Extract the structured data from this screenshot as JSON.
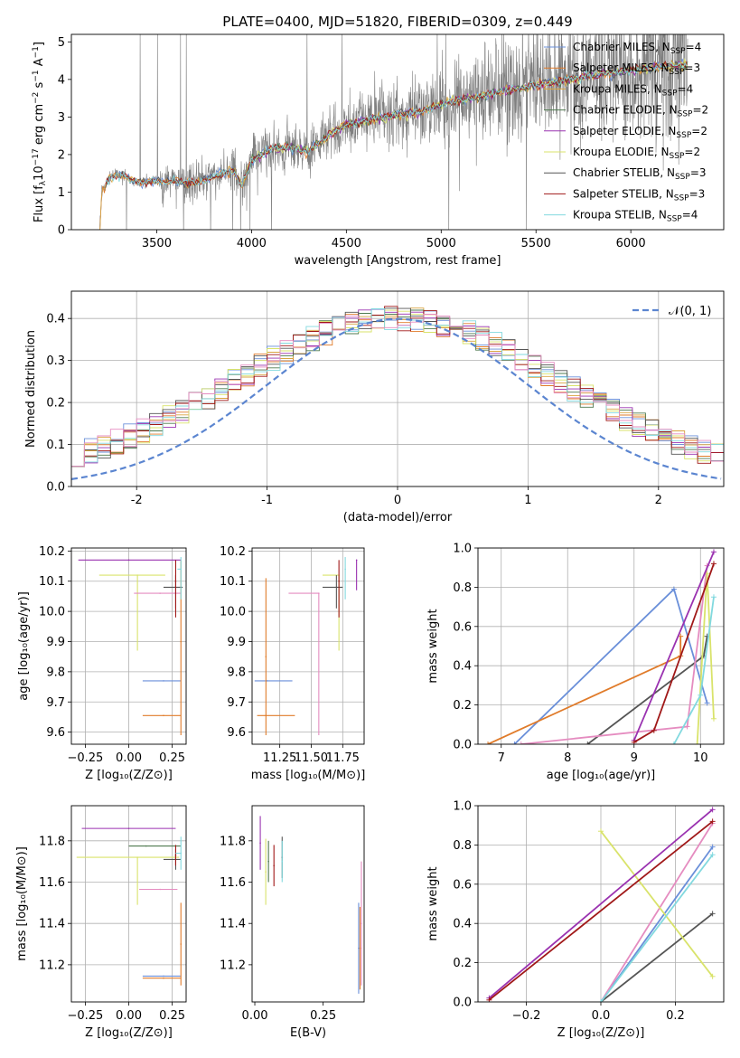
{
  "figure_title": "PLATE=0400, MJD=51820, FIBERID=0309, z=0.449",
  "colors": {
    "Chabrier MILES": "#6a8fd9",
    "Salpeter MILES": "#e07b2a",
    "Kroupa MILES": "#d9a441",
    "Chabrier ELODIE": "#4f7a4f",
    "Salpeter ELODIE": "#9a32b0",
    "Kroupa ELODIE": "#d9e36b",
    "Chabrier STELIB": "#555555",
    "Salpeter STELIB": "#a01818",
    "Kroupa STELIB": "#82d9df",
    "Kroupa ELODIE line": "#e58cc0",
    "data": "#808080",
    "normal": "#5b85d0"
  },
  "chart_data": [
    {
      "id": "spectrum",
      "type": "line",
      "title": "PLATE=0400, MJD=51820, FIBERID=0309, z=0.449",
      "xlabel": "wavelength [Angstrom, rest frame]",
      "ylabel_parts": [
        "Flux [f",
        "λ",
        "10",
        "−17",
        " erg cm",
        "−2",
        " s",
        "−1",
        " A",
        "−1",
        "]"
      ],
      "xlim": [
        3050,
        6490
      ],
      "ylim": [
        0,
        5.2
      ],
      "xticks": [
        3500,
        4000,
        4500,
        5000,
        5500,
        6000
      ],
      "yticks": [
        0,
        1,
        2,
        3,
        4,
        5
      ],
      "grid": false,
      "legend": "upper right",
      "legend_entries": [
        {
          "label": "Chabrier MILES, N",
          "sub": "SSP",
          "suffix": "=4",
          "color_key": "Chabrier MILES"
        },
        {
          "label": "Salpeter MILES, N",
          "sub": "SSP",
          "suffix": "=3",
          "color_key": "Salpeter MILES"
        },
        {
          "label": "Kroupa MILES, N",
          "sub": "SSP",
          "suffix": "=4",
          "color_key": "Kroupa MILES"
        },
        {
          "label": "Chabrier ELODIE, N",
          "sub": "SSP",
          "suffix": "=2",
          "color_key": "Chabrier ELODIE"
        },
        {
          "label": "Salpeter ELODIE, N",
          "sub": "SSP",
          "suffix": "=2",
          "color_key": "Salpeter ELODIE"
        },
        {
          "label": "Kroupa ELODIE, N",
          "sub": "SSP",
          "suffix": "=2",
          "color_key": "Kroupa ELODIE"
        },
        {
          "label": "Chabrier STELIB, N",
          "sub": "SSP",
          "suffix": "=3",
          "color_key": "Chabrier STELIB"
        },
        {
          "label": "Salpeter STELIB, N",
          "sub": "SSP",
          "suffix": "=3",
          "color_key": "Salpeter STELIB"
        },
        {
          "label": "Kroupa STELIB, N",
          "sub": "SSP",
          "suffix": "=4",
          "color_key": "Kroupa STELIB"
        }
      ],
      "continuum_knots": [
        [
          3200,
          0.0
        ],
        [
          3210,
          1.05
        ],
        [
          3250,
          1.35
        ],
        [
          3300,
          1.5
        ],
        [
          3400,
          1.25
        ],
        [
          3500,
          1.3
        ],
        [
          3700,
          1.25
        ],
        [
          3800,
          1.4
        ],
        [
          3900,
          1.6
        ],
        [
          3950,
          1.2
        ],
        [
          4000,
          1.85
        ],
        [
          4100,
          2.15
        ],
        [
          4200,
          2.2
        ],
        [
          4300,
          2.1
        ],
        [
          4400,
          2.5
        ],
        [
          4500,
          2.8
        ],
        [
          4700,
          3.0
        ],
        [
          4900,
          3.15
        ],
        [
          5000,
          3.35
        ],
        [
          5200,
          3.55
        ],
        [
          5400,
          3.75
        ],
        [
          5600,
          3.95
        ],
        [
          5800,
          4.1
        ],
        [
          6000,
          4.25
        ],
        [
          6200,
          4.35
        ],
        [
          6300,
          4.4
        ]
      ]
    },
    {
      "id": "residuals",
      "type": "histogram",
      "xlabel": "(data-model)/error",
      "ylabel": "Normed distribution",
      "xlim": [
        -2.5,
        2.5
      ],
      "ylim": [
        0,
        0.465
      ],
      "xticks": [
        -2,
        -1,
        0,
        1,
        2
      ],
      "yticks": [
        0.0,
        0.1,
        0.2,
        0.3,
        0.4
      ],
      "grid": true,
      "legend": "upper right",
      "normal_label": "𝒩(0, 1)",
      "bin_width": 0.1
    },
    {
      "id": "age_vs_Z",
      "type": "errorbar",
      "xlabel": "Z [log₁₀(Z/Z⊙)]",
      "ylabel": "age  [log₁₀(age/yr)]",
      "xlim": [
        -0.33,
        0.33
      ],
      "ylim": [
        9.56,
        10.21
      ],
      "xticks": [
        -0.25,
        0.0,
        0.25
      ],
      "xtick_labels": [
        "−0.25",
        "0.00",
        "0.25"
      ],
      "yticks": [
        9.6,
        9.7,
        9.8,
        9.9,
        10.0,
        10.1,
        10.2
      ],
      "grid": true,
      "points": [
        {
          "x": 0.2,
          "xerr": [
            0.12,
            0.1
          ],
          "y": 9.77,
          "yerr": [
            0.0,
            0.0
          ],
          "color_key": "Chabrier MILES"
        },
        {
          "x": 0.2,
          "xerr": [
            0.12,
            0.1
          ],
          "y": 9.655,
          "yerr": [
            0.0,
            0.0
          ],
          "color_key": "Salpeter MILES"
        },
        {
          "x": 0.3,
          "xerr": [
            0.0,
            0.0
          ],
          "y": 9.9,
          "yerr": [
            0.31,
            0.27
          ],
          "color_key": "Salpeter MILES"
        },
        {
          "x": 0.05,
          "xerr": [
            0.22,
            0.16
          ],
          "y": 10.12,
          "yerr": [
            0.25,
            0.0
          ],
          "color_key": "Kroupa ELODIE"
        },
        {
          "x": 0.18,
          "xerr": [
            0.15,
            0.12
          ],
          "y": 10.06,
          "yerr": [
            0.0,
            0.0
          ],
          "color_key": "Kroupa ELODIE line"
        },
        {
          "x": 0.0,
          "xerr": [
            0.29,
            0.3
          ],
          "y": 10.17,
          "yerr": [
            0.0,
            0.0
          ],
          "color_key": "Salpeter ELODIE"
        },
        {
          "x": 0.27,
          "xerr": [
            0.07,
            0.04
          ],
          "y": 10.08,
          "yerr": [
            0.07,
            0.04
          ],
          "color_key": "Chabrier STELIB"
        },
        {
          "x": 0.27,
          "xerr": [
            0.0,
            0.0
          ],
          "y": 10.1,
          "yerr": [
            0.12,
            0.07
          ],
          "color_key": "Salpeter STELIB"
        },
        {
          "x": 0.3,
          "xerr": [
            0.02,
            0.0
          ],
          "y": 10.14,
          "yerr": [
            0.1,
            0.04
          ],
          "color_key": "Kroupa STELIB"
        }
      ]
    },
    {
      "id": "age_vs_mass",
      "type": "errorbar",
      "xlabel": "mass [log₁₀(M/M⊙)]",
      "ylabel": "",
      "xlim": [
        11.03,
        11.92
      ],
      "ylim": [
        9.56,
        10.21
      ],
      "xticks": [
        11.25,
        11.5,
        11.75
      ],
      "xtick_labels": [
        "11.25",
        "11.50",
        "11.75"
      ],
      "yticks": [
        9.6,
        9.7,
        9.8,
        9.9,
        10.0,
        10.1,
        10.2
      ],
      "grid": true,
      "points": [
        {
          "x": 11.15,
          "xerr": [
            0.1,
            0.2
          ],
          "y": 9.77,
          "yerr": [
            0.0,
            0.0
          ],
          "color_key": "Chabrier MILES"
        },
        {
          "x": 11.14,
          "xerr": [
            0.07,
            0.23
          ],
          "y": 9.655,
          "yerr": [
            0.0,
            0.0
          ],
          "color_key": "Salpeter MILES"
        },
        {
          "x": 11.14,
          "xerr": [
            0.0,
            0.0
          ],
          "y": 9.85,
          "yerr": [
            0.26,
            0.26
          ],
          "color_key": "Salpeter MILES"
        },
        {
          "x": 11.56,
          "xerr": [
            0.24,
            0.0
          ],
          "y": 10.06,
          "yerr": [
            0.47,
            0.0
          ],
          "color_key": "Kroupa ELODIE line"
        },
        {
          "x": 11.72,
          "xerr": [
            0.13,
            0.0
          ],
          "y": 10.12,
          "yerr": [
            0.25,
            0.0
          ],
          "color_key": "Kroupa ELODIE"
        },
        {
          "x": 11.86,
          "xerr": [
            0.0,
            0.0
          ],
          "y": 10.17,
          "yerr": [
            0.1,
            0.0
          ],
          "color_key": "Salpeter ELODIE"
        },
        {
          "x": 11.7,
          "xerr": [
            0.11,
            0.05
          ],
          "y": 10.08,
          "yerr": [
            0.07,
            0.04
          ],
          "color_key": "Chabrier STELIB"
        },
        {
          "x": 11.72,
          "xerr": [
            0.0,
            0.0
          ],
          "y": 10.1,
          "yerr": [
            0.12,
            0.07
          ],
          "color_key": "Salpeter STELIB"
        },
        {
          "x": 11.77,
          "xerr": [
            0.0,
            0.0
          ],
          "y": 10.14,
          "yerr": [
            0.1,
            0.04
          ],
          "color_key": "Kroupa STELIB"
        }
      ]
    },
    {
      "id": "weight_vs_age",
      "type": "line",
      "xlabel": "age  [log₁₀(age/yr)]",
      "ylabel": "mass weight",
      "xlim": [
        6.65,
        10.35
      ],
      "ylim": [
        0,
        1.0
      ],
      "xticks": [
        7,
        8,
        9,
        10
      ],
      "yticks": [
        0.0,
        0.2,
        0.4,
        0.6,
        0.8,
        1.0
      ],
      "grid": true,
      "series": [
        {
          "color_key": "Chabrier MILES",
          "x": [
            7.2,
            9.6,
            10.1
          ],
          "y": [
            0.0,
            0.79,
            0.21
          ]
        },
        {
          "color_key": "Salpeter MILES",
          "x": [
            6.8,
            9.7,
            9.7
          ],
          "y": [
            0.0,
            0.45,
            0.55
          ]
        },
        {
          "color_key": "Chabrier STELIB",
          "x": [
            8.3,
            10.05,
            10.1
          ],
          "y": [
            0.0,
            0.45,
            0.55
          ]
        },
        {
          "color_key": "Kroupa ELODIE line",
          "x": [
            7.3,
            9.8,
            10.1
          ],
          "y": [
            0.0,
            0.09,
            0.91
          ]
        },
        {
          "color_key": "Kroupa ELODIE",
          "x": [
            9.95,
            10.1,
            10.2
          ],
          "y": [
            0.0,
            0.87,
            0.13
          ]
        },
        {
          "color_key": "Kroupa STELIB",
          "x": [
            9.6,
            10.0,
            10.2
          ],
          "y": [
            0.0,
            0.25,
            0.75
          ]
        },
        {
          "color_key": "Salpeter ELODIE",
          "x": [
            9.0,
            10.2
          ],
          "y": [
            0.02,
            0.98
          ]
        },
        {
          "color_key": "Salpeter STELIB",
          "x": [
            9.0,
            9.3,
            10.2
          ],
          "y": [
            0.01,
            0.07,
            0.92
          ]
        }
      ]
    },
    {
      "id": "mass_vs_Z",
      "type": "errorbar",
      "xlabel": "Z [log₁₀(Z/Z⊙)]",
      "ylabel": "mass [log₁₀(M/M⊙)]",
      "xlim": [
        -0.33,
        0.33
      ],
      "ylim": [
        11.02,
        11.97
      ],
      "xticks": [
        -0.25,
        0.0,
        0.25
      ],
      "xtick_labels": [
        "−0.25",
        "0.00",
        "0.25"
      ],
      "yticks": [
        11.2,
        11.4,
        11.6,
        11.8
      ],
      "grid": true,
      "points": [
        {
          "x": 0.2,
          "xerr": [
            0.12,
            0.1
          ],
          "y": 11.145,
          "yerr": [
            0.0,
            0.0
          ],
          "color_key": "Chabrier MILES"
        },
        {
          "x": 0.2,
          "xerr": [
            0.12,
            0.1
          ],
          "y": 11.135,
          "yerr": [
            0.0,
            0.0
          ],
          "color_key": "Salpeter MILES"
        },
        {
          "x": 0.3,
          "xerr": [
            0.0,
            0.0
          ],
          "y": 11.3,
          "yerr": [
            0.2,
            0.2
          ],
          "color_key": "Salpeter MILES"
        },
        {
          "x": 0.05,
          "xerr": [
            0.35,
            0.24
          ],
          "y": 11.72,
          "yerr": [
            0.23,
            0.0
          ],
          "color_key": "Kroupa ELODIE"
        },
        {
          "x": 0.18,
          "xerr": [
            0.12,
            0.1
          ],
          "y": 11.565,
          "yerr": [
            0.0,
            0.0
          ],
          "color_key": "Kroupa ELODIE line"
        },
        {
          "x": 0.0,
          "xerr": [
            0.27,
            0.27
          ],
          "y": 11.86,
          "yerr": [
            0.0,
            0.0
          ],
          "color_key": "Salpeter ELODIE"
        },
        {
          "x": 0.1,
          "xerr": [
            0.1,
            0.2
          ],
          "y": 11.775,
          "yerr": [
            0.0,
            0.0
          ],
          "color_key": "Chabrier ELODIE"
        },
        {
          "x": 0.27,
          "xerr": [
            0.07,
            0.03
          ],
          "y": 11.71,
          "yerr": [
            0.05,
            0.05
          ],
          "color_key": "Chabrier STELIB"
        },
        {
          "x": 0.27,
          "xerr": [
            0.0,
            0.0
          ],
          "y": 11.73,
          "yerr": [
            0.05,
            0.05
          ],
          "color_key": "Salpeter STELIB"
        },
        {
          "x": 0.3,
          "xerr": [
            0.03,
            0.0
          ],
          "y": 11.74,
          "yerr": [
            0.08,
            0.08
          ],
          "color_key": "Kroupa STELIB"
        }
      ]
    },
    {
      "id": "mass_vs_ebv",
      "type": "errorbar",
      "xlabel": "E(B-V)",
      "ylabel": "",
      "xlim": [
        -0.01,
        0.4
      ],
      "ylim": [
        11.02,
        11.97
      ],
      "xticks": [
        0.0,
        0.25
      ],
      "xtick_labels": [
        "0.00",
        "0.25"
      ],
      "yticks": [
        11.2,
        11.4,
        11.6,
        11.8
      ],
      "grid": false,
      "points": [
        {
          "x": 0.02,
          "xerr": [
            0.0,
            0.0
          ],
          "y": 11.79,
          "yerr": [
            0.13,
            0.13
          ],
          "color_key": "Salpeter ELODIE"
        },
        {
          "x": 0.04,
          "xerr": [
            0.0,
            0.0
          ],
          "y": 11.65,
          "yerr": [
            0.16,
            0.16
          ],
          "color_key": "Kroupa ELODIE"
        },
        {
          "x": 0.05,
          "xerr": [
            0.0,
            0.0
          ],
          "y": 11.7,
          "yerr": [
            0.1,
            0.1
          ],
          "color_key": "Chabrier ELODIE"
        },
        {
          "x": 0.07,
          "xerr": [
            0.0,
            0.0
          ],
          "y": 11.68,
          "yerr": [
            0.1,
            0.1
          ],
          "color_key": "Salpeter STELIB"
        },
        {
          "x": 0.1,
          "xerr": [
            0.0,
            0.0
          ],
          "y": 11.72,
          "yerr": [
            0.1,
            0.1
          ],
          "color_key": "Chabrier STELIB"
        },
        {
          "x": 0.1,
          "xerr": [
            0.0,
            0.0
          ],
          "y": 11.7,
          "yerr": [
            0.1,
            0.1
          ],
          "color_key": "Kroupa STELIB"
        },
        {
          "x": 0.38,
          "xerr": [
            0.0,
            0.0
          ],
          "y": 11.28,
          "yerr": [
            0.22,
            0.22
          ],
          "color_key": "Chabrier MILES"
        },
        {
          "x": 0.385,
          "xerr": [
            0.0,
            0.0
          ],
          "y": 11.28,
          "yerr": [
            0.2,
            0.2
          ],
          "color_key": "Salpeter MILES"
        },
        {
          "x": 0.39,
          "xerr": [
            0.0,
            0.0
          ],
          "y": 11.4,
          "yerr": [
            0.3,
            0.3
          ],
          "color_key": "Kroupa ELODIE line"
        }
      ]
    },
    {
      "id": "weight_vs_Z",
      "type": "line",
      "xlabel": "Z [log₁₀(Z/Z⊙)]",
      "ylabel": "mass weight",
      "xlim": [
        -0.33,
        0.33
      ],
      "ylim": [
        0,
        1.0
      ],
      "xticks": [
        -0.2,
        0.0,
        0.2
      ],
      "xtick_labels": [
        "−0.2",
        "0.0",
        "0.2"
      ],
      "yticks": [
        0.0,
        0.2,
        0.4,
        0.6,
        0.8,
        1.0
      ],
      "grid": true,
      "series": [
        {
          "color_key": "Chabrier MILES",
          "x": [
            0.0,
            0.3
          ],
          "y": [
            0.0,
            0.79
          ]
        },
        {
          "color_key": "Chabrier STELIB",
          "x": [
            0.0,
            0.3
          ],
          "y": [
            0.0,
            0.45
          ]
        },
        {
          "color_key": "Kroupa ELODIE line",
          "x": [
            0.0,
            0.3
          ],
          "y": [
            0.0,
            0.91
          ]
        },
        {
          "color_key": "Kroupa ELODIE",
          "x": [
            0.0,
            0.3
          ],
          "y": [
            0.87,
            0.13
          ]
        },
        {
          "color_key": "Kroupa STELIB",
          "x": [
            0.0,
            0.3
          ],
          "y": [
            0.0,
            0.75
          ]
        },
        {
          "color_key": "Salpeter ELODIE",
          "x": [
            -0.3,
            0.3
          ],
          "y": [
            0.02,
            0.98
          ]
        },
        {
          "color_key": "Salpeter STELIB",
          "x": [
            -0.3,
            0.3
          ],
          "y": [
            0.01,
            0.92
          ]
        }
      ]
    }
  ]
}
